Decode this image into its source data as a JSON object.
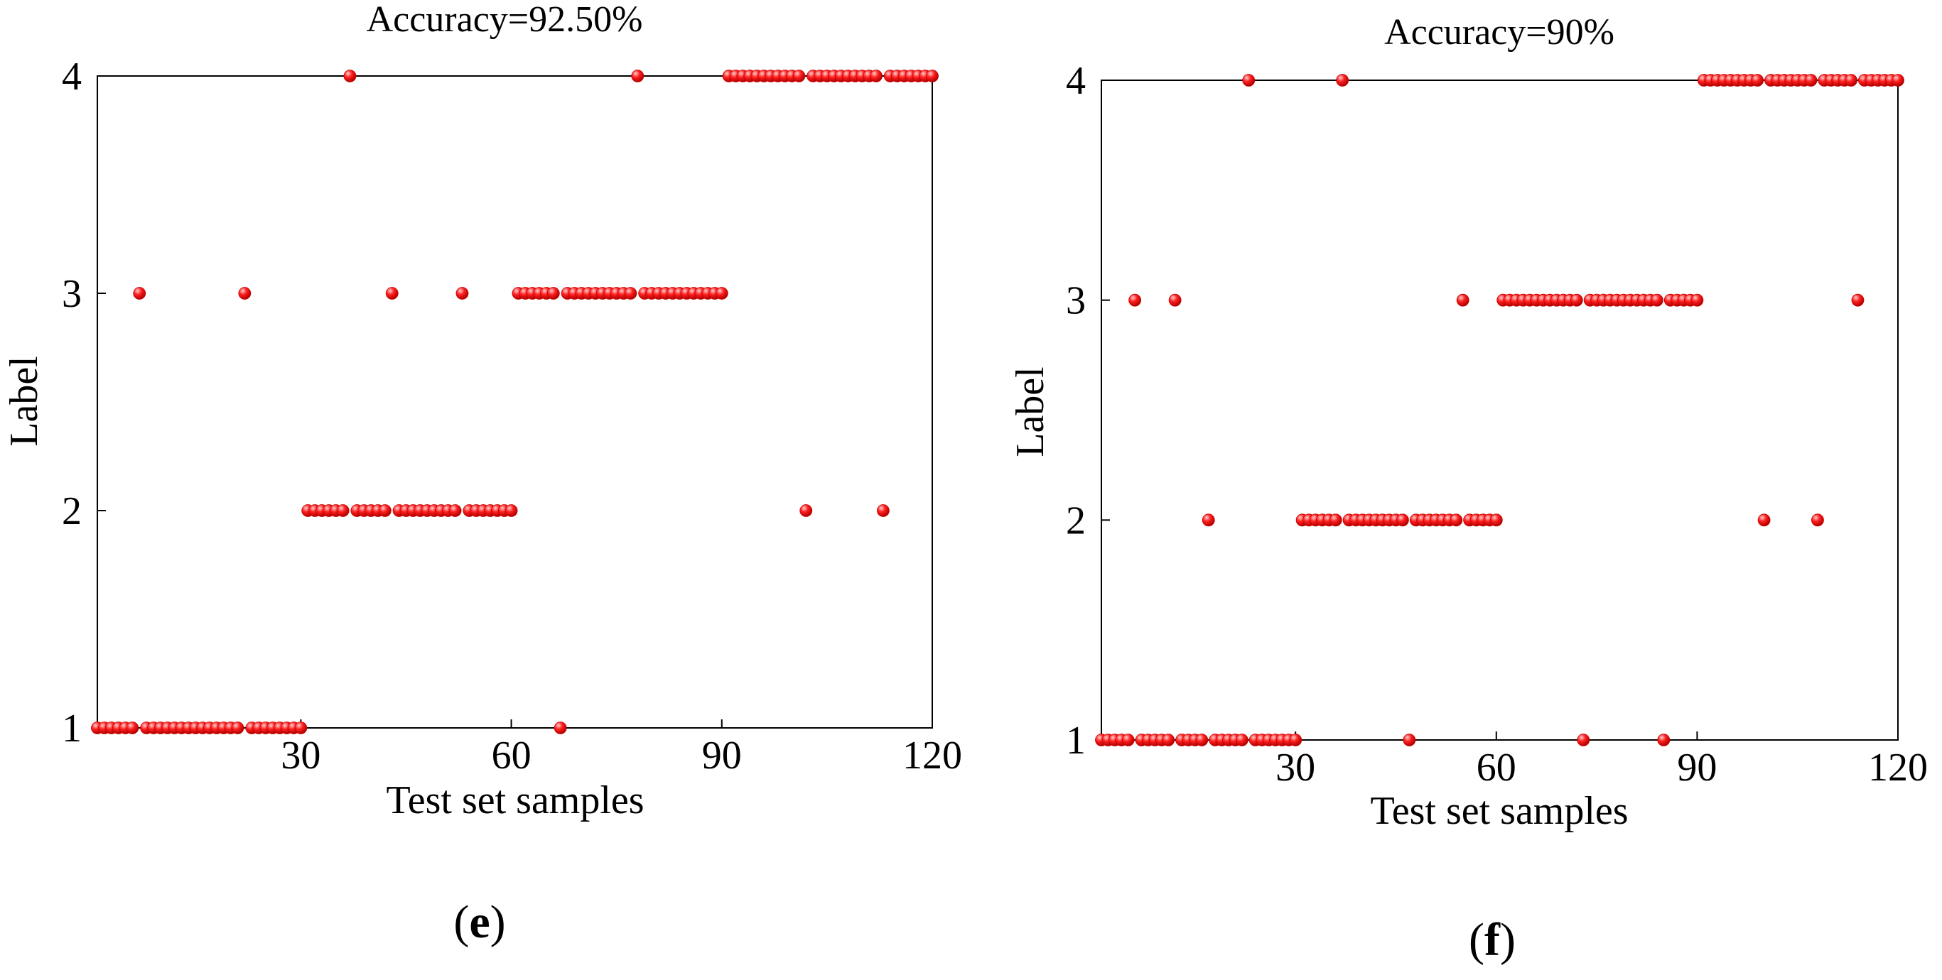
{
  "chart_data": [
    {
      "type": "scatter",
      "panel_label": "e",
      "title": "Accuracy=92.50%",
      "xlabel": "Test set samples",
      "ylabel": "Label",
      "xlim": [
        1,
        120
      ],
      "ylim": [
        1,
        4
      ],
      "xticks": [
        30,
        60,
        90,
        120
      ],
      "yticks": [
        1,
        2,
        3,
        4
      ],
      "grid": false,
      "marker_color": "#ff0000",
      "points": [
        [
          1,
          1
        ],
        [
          2,
          1
        ],
        [
          3,
          1
        ],
        [
          4,
          1
        ],
        [
          5,
          1
        ],
        [
          6,
          1
        ],
        [
          7,
          3
        ],
        [
          8,
          1
        ],
        [
          9,
          1
        ],
        [
          10,
          1
        ],
        [
          11,
          1
        ],
        [
          12,
          1
        ],
        [
          13,
          1
        ],
        [
          14,
          1
        ],
        [
          15,
          1
        ],
        [
          16,
          1
        ],
        [
          17,
          1
        ],
        [
          18,
          1
        ],
        [
          19,
          1
        ],
        [
          20,
          1
        ],
        [
          21,
          1
        ],
        [
          22,
          3
        ],
        [
          23,
          1
        ],
        [
          24,
          1
        ],
        [
          25,
          1
        ],
        [
          26,
          1
        ],
        [
          27,
          1
        ],
        [
          28,
          1
        ],
        [
          29,
          1
        ],
        [
          30,
          1
        ],
        [
          31,
          2
        ],
        [
          32,
          2
        ],
        [
          33,
          2
        ],
        [
          34,
          2
        ],
        [
          35,
          2
        ],
        [
          36,
          2
        ],
        [
          37,
          4
        ],
        [
          38,
          2
        ],
        [
          39,
          2
        ],
        [
          40,
          2
        ],
        [
          41,
          2
        ],
        [
          42,
          2
        ],
        [
          43,
          3
        ],
        [
          44,
          2
        ],
        [
          45,
          2
        ],
        [
          46,
          2
        ],
        [
          47,
          2
        ],
        [
          48,
          2
        ],
        [
          49,
          2
        ],
        [
          50,
          2
        ],
        [
          51,
          2
        ],
        [
          52,
          2
        ],
        [
          53,
          3
        ],
        [
          54,
          2
        ],
        [
          55,
          2
        ],
        [
          56,
          2
        ],
        [
          57,
          2
        ],
        [
          58,
          2
        ],
        [
          59,
          2
        ],
        [
          60,
          2
        ],
        [
          61,
          3
        ],
        [
          62,
          3
        ],
        [
          63,
          3
        ],
        [
          64,
          3
        ],
        [
          65,
          3
        ],
        [
          66,
          3
        ],
        [
          67,
          1
        ],
        [
          68,
          3
        ],
        [
          69,
          3
        ],
        [
          70,
          3
        ],
        [
          71,
          3
        ],
        [
          72,
          3
        ],
        [
          73,
          3
        ],
        [
          74,
          3
        ],
        [
          75,
          3
        ],
        [
          76,
          3
        ],
        [
          77,
          3
        ],
        [
          78,
          4
        ],
        [
          79,
          3
        ],
        [
          80,
          3
        ],
        [
          81,
          3
        ],
        [
          82,
          3
        ],
        [
          83,
          3
        ],
        [
          84,
          3
        ],
        [
          85,
          3
        ],
        [
          86,
          3
        ],
        [
          87,
          3
        ],
        [
          88,
          3
        ],
        [
          89,
          3
        ],
        [
          90,
          3
        ],
        [
          91,
          4
        ],
        [
          92,
          4
        ],
        [
          93,
          4
        ],
        [
          94,
          4
        ],
        [
          95,
          4
        ],
        [
          96,
          4
        ],
        [
          97,
          4
        ],
        [
          98,
          4
        ],
        [
          99,
          4
        ],
        [
          100,
          4
        ],
        [
          101,
          4
        ],
        [
          102,
          2
        ],
        [
          103,
          4
        ],
        [
          104,
          4
        ],
        [
          105,
          4
        ],
        [
          106,
          4
        ],
        [
          107,
          4
        ],
        [
          108,
          4
        ],
        [
          109,
          4
        ],
        [
          110,
          4
        ],
        [
          111,
          4
        ],
        [
          112,
          4
        ],
        [
          113,
          2
        ],
        [
          114,
          4
        ],
        [
          115,
          4
        ],
        [
          116,
          4
        ],
        [
          117,
          4
        ],
        [
          118,
          4
        ],
        [
          119,
          4
        ],
        [
          120,
          4
        ]
      ]
    },
    {
      "type": "scatter",
      "panel_label": "f",
      "title": "Accuracy=90%",
      "xlabel": "Test set samples",
      "ylabel": "Label",
      "xlim": [
        1,
        120
      ],
      "ylim": [
        1,
        4
      ],
      "xticks": [
        30,
        60,
        90,
        120
      ],
      "yticks": [
        1,
        2,
        3,
        4
      ],
      "grid": false,
      "marker_color": "#ff0000",
      "points": [
        [
          1,
          1
        ],
        [
          2,
          1
        ],
        [
          3,
          1
        ],
        [
          4,
          1
        ],
        [
          5,
          1
        ],
        [
          6,
          3
        ],
        [
          7,
          1
        ],
        [
          8,
          1
        ],
        [
          9,
          1
        ],
        [
          10,
          1
        ],
        [
          11,
          1
        ],
        [
          12,
          3
        ],
        [
          13,
          1
        ],
        [
          14,
          1
        ],
        [
          15,
          1
        ],
        [
          16,
          1
        ],
        [
          17,
          2
        ],
        [
          18,
          1
        ],
        [
          19,
          1
        ],
        [
          20,
          1
        ],
        [
          21,
          1
        ],
        [
          22,
          1
        ],
        [
          23,
          4
        ],
        [
          24,
          1
        ],
        [
          25,
          1
        ],
        [
          26,
          1
        ],
        [
          27,
          1
        ],
        [
          28,
          1
        ],
        [
          29,
          1
        ],
        [
          30,
          1
        ],
        [
          31,
          2
        ],
        [
          32,
          2
        ],
        [
          33,
          2
        ],
        [
          34,
          2
        ],
        [
          35,
          2
        ],
        [
          36,
          2
        ],
        [
          37,
          4
        ],
        [
          38,
          2
        ],
        [
          39,
          2
        ],
        [
          40,
          2
        ],
        [
          41,
          2
        ],
        [
          42,
          2
        ],
        [
          43,
          2
        ],
        [
          44,
          2
        ],
        [
          45,
          2
        ],
        [
          46,
          2
        ],
        [
          47,
          1
        ],
        [
          48,
          2
        ],
        [
          49,
          2
        ],
        [
          50,
          2
        ],
        [
          51,
          2
        ],
        [
          52,
          2
        ],
        [
          53,
          2
        ],
        [
          54,
          2
        ],
        [
          55,
          3
        ],
        [
          56,
          2
        ],
        [
          57,
          2
        ],
        [
          58,
          2
        ],
        [
          59,
          2
        ],
        [
          60,
          2
        ],
        [
          61,
          3
        ],
        [
          62,
          3
        ],
        [
          63,
          3
        ],
        [
          64,
          3
        ],
        [
          65,
          3
        ],
        [
          66,
          3
        ],
        [
          67,
          3
        ],
        [
          68,
          3
        ],
        [
          69,
          3
        ],
        [
          70,
          3
        ],
        [
          71,
          3
        ],
        [
          72,
          3
        ],
        [
          73,
          1
        ],
        [
          74,
          3
        ],
        [
          75,
          3
        ],
        [
          76,
          3
        ],
        [
          77,
          3
        ],
        [
          78,
          3
        ],
        [
          79,
          3
        ],
        [
          80,
          3
        ],
        [
          81,
          3
        ],
        [
          82,
          3
        ],
        [
          83,
          3
        ],
        [
          84,
          3
        ],
        [
          85,
          1
        ],
        [
          86,
          3
        ],
        [
          87,
          3
        ],
        [
          88,
          3
        ],
        [
          89,
          3
        ],
        [
          90,
          3
        ],
        [
          91,
          4
        ],
        [
          92,
          4
        ],
        [
          93,
          4
        ],
        [
          94,
          4
        ],
        [
          95,
          4
        ],
        [
          96,
          4
        ],
        [
          97,
          4
        ],
        [
          98,
          4
        ],
        [
          99,
          4
        ],
        [
          100,
          2
        ],
        [
          101,
          4
        ],
        [
          102,
          4
        ],
        [
          103,
          4
        ],
        [
          104,
          4
        ],
        [
          105,
          4
        ],
        [
          106,
          4
        ],
        [
          107,
          4
        ],
        [
          108,
          2
        ],
        [
          109,
          4
        ],
        [
          110,
          4
        ],
        [
          111,
          4
        ],
        [
          112,
          4
        ],
        [
          113,
          4
        ],
        [
          114,
          3
        ],
        [
          115,
          4
        ],
        [
          116,
          4
        ],
        [
          117,
          4
        ],
        [
          118,
          4
        ],
        [
          119,
          4
        ],
        [
          120,
          4
        ]
      ]
    }
  ]
}
